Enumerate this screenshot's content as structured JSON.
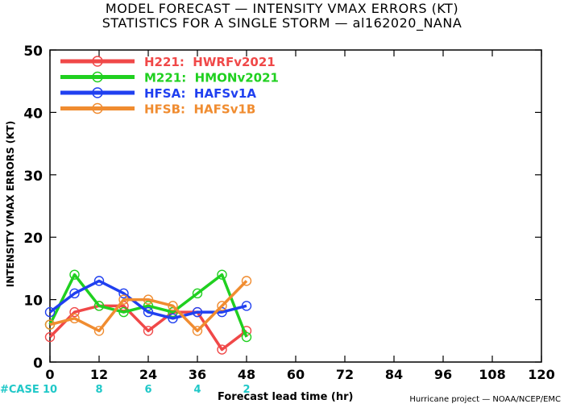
{
  "header": {
    "title_line1": "MODEL FORECAST — INTENSITY VMAX ERRORS (KT)",
    "title_line2": "STATISTICS FOR A SINGLE STORM — al162020_NANA"
  },
  "footer": {
    "credit": "Hurricane project — NOAA/NCEP/EMC"
  },
  "chart_data": {
    "type": "line",
    "title": "MODEL FORECAST — INTENSITY VMAX ERRORS (KT)",
    "subtitle": "STATISTICS FOR A SINGLE STORM — al162020_NANA",
    "xlabel": "Forecast lead time (hr)",
    "ylabel": "INTENSITY VMAX ERRORS (KT)",
    "xlim": [
      0,
      120
    ],
    "ylim": [
      0,
      50
    ],
    "xticks": [
      0,
      12,
      24,
      36,
      48,
      60,
      72,
      84,
      96,
      108,
      120
    ],
    "yticks": [
      0,
      10,
      20,
      30,
      40,
      50
    ],
    "grid": false,
    "legend_position": "top-left",
    "case_label": "#CASE",
    "cases": [
      {
        "x": 0,
        "n": "10"
      },
      {
        "x": 12,
        "n": "8"
      },
      {
        "x": 24,
        "n": "6"
      },
      {
        "x": 36,
        "n": "4"
      },
      {
        "x": 48,
        "n": "2"
      }
    ],
    "case_color": "#20c8c8",
    "x": [
      0,
      6,
      12,
      18,
      24,
      30,
      36,
      42,
      48
    ],
    "series": [
      {
        "name": "H221:  HWRFv2021",
        "color": "#f04848",
        "values": [
          4,
          8,
          9,
          9,
          5,
          8,
          8,
          2,
          5
        ]
      },
      {
        "name": "M221:  HMONv2021",
        "color": "#20d020",
        "values": [
          6,
          14,
          9,
          8,
          9,
          8,
          11,
          14,
          4
        ]
      },
      {
        "name": "HFSA:  HAFSv1A",
        "color": "#2040f0",
        "values": [
          8,
          11,
          13,
          11,
          8,
          7,
          8,
          8,
          9
        ]
      },
      {
        "name": "HFSB:  HAFSv1B",
        "color": "#f08c30",
        "values": [
          6,
          7,
          5,
          10,
          10,
          9,
          5,
          9,
          13
        ]
      }
    ]
  }
}
